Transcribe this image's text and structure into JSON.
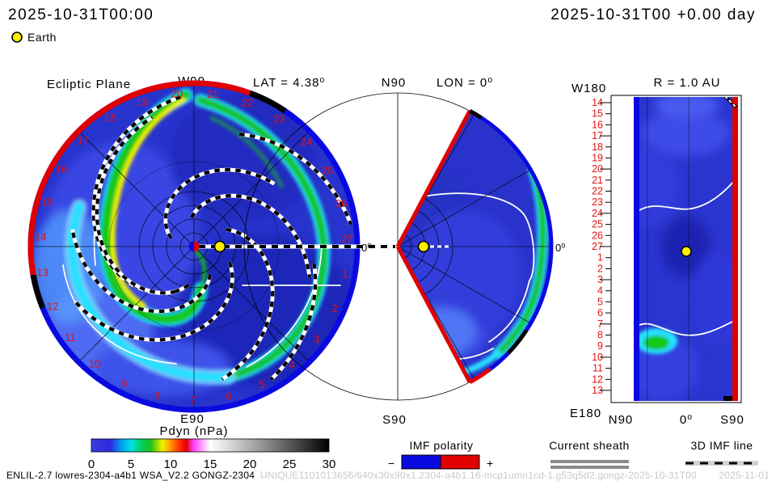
{
  "header": {
    "datetime_left": "2025-10-31T00:00",
    "datetime_right": "2025-10-31T00 +0.00 day",
    "earth_label": "Earth"
  },
  "left_panel": {
    "title": "Ecliptic Plane",
    "top_label": "W90",
    "lat_label": "LAT = 4.38⁰",
    "bottom_label": "E90",
    "zero_label": "0⁰",
    "day_ring": {
      "days": [
        "1",
        "2",
        "3",
        "4",
        "5",
        "6",
        "7",
        "8",
        "9",
        "10",
        "11",
        "12",
        "13",
        "14",
        "15",
        "16",
        "17",
        "18",
        "19",
        "20",
        "21",
        "22",
        "23",
        "24",
        "25",
        "26",
        "27"
      ],
      "angle_day27_deg": 3,
      "step_deg": 13.333
    }
  },
  "middle_panel": {
    "top_label": "N90",
    "lon_label": "LON = 0⁰",
    "bottom_label": "S90",
    "zero_label": "0⁰"
  },
  "right_panel": {
    "title": "R = 1.0 AU",
    "corner_top_label": "W180",
    "corner_bottom_label": "E180",
    "x_labels": [
      "N90",
      "0⁰",
      "S90"
    ],
    "y_days": [
      "14",
      "15",
      "16",
      "17",
      "18",
      "19",
      "20",
      "21",
      "22",
      "23",
      "24",
      "25",
      "26",
      "27",
      "1",
      "2",
      "3",
      "4",
      "5",
      "6",
      "7",
      "8",
      "9",
      "10",
      "11",
      "12",
      "13"
    ],
    "long_tick_days": [
      "14",
      "17",
      "20",
      "24",
      "27",
      "3",
      "7",
      "10",
      "13"
    ]
  },
  "colorbar": {
    "title": "Pdyn (nPa)",
    "ticks": [
      0,
      5,
      10,
      15,
      20,
      25,
      30
    ],
    "min": 0,
    "max": 30
  },
  "legend": {
    "imf": {
      "label": "IMF polarity",
      "minus": "−",
      "plus": "+",
      "neg_color": "#0a0ae0",
      "pos_color": "#e00000"
    },
    "sheath": {
      "label": "Current sheath",
      "color": "#8a8a8a"
    },
    "imf_line": {
      "label": "3D IMF line"
    }
  },
  "footer": {
    "model": "ENLIL-2.7 lowres-2304-a4b1 WSA_V2.2 GONGZ-2304",
    "run_id": "UNIQUE1101013656/640x30x90x1.2304-a4b1.16-mcp1umn1cd-1.g53q5d2.gongz-2025-10-31T00",
    "date": "2025-11-01"
  },
  "chart_data": [
    {
      "type": "heatmap",
      "title": "Ecliptic Plane (polar view, LAT = 4.38⁰)",
      "quantity": "Pdyn (nPa)",
      "scale_range": [
        0,
        30
      ],
      "colorbar": "blue(0) → cyan(4) → green(6) → yellow(9) → red(12) → magenta(13.5) → white(15.5) → black(30)",
      "features": [
        "ambient solar wind ~1-3 nPa (blue) filling disc",
        "two Parker-spiral high-density arms (green ~6 nPa with yellow core ~9 nPa) winding from outer rim near day 20-24 inward to Sun",
        "cyan band (~4 nPa) sweeping along lower-left quadrant",
        "Sun at center (blue/red polarity dot), Earth (yellow) at 1 AU on the 0⁰ line",
        "outer rim IMF polarity: red (+) from day ~13 to ~22 (top/left), blue (−) elsewhere",
        "checkered black/white 3D IMF spiral lines; white current-sheath lines",
        "day-of-rotation labels 1-27 around rim"
      ]
    },
    {
      "type": "heatmap",
      "title": "Meridional slice, LON = 0⁰",
      "quantity": "Pdyn (nPa)",
      "features": [
        "wedge covering ±60⁰ latitude, apex at Sun, Earth dot near apex on equator",
        "green/cyan high-density crescent near outer boundary on equatorward east side",
        "white current-sheath line arcing through wedge",
        "red inner radial boundaries; outer arc blue (−) with black/red segments south"
      ]
    },
    {
      "type": "heatmap",
      "title": "R = 1.0 AU latitude-time map",
      "quantity": "Pdyn (nPa)",
      "x_axis": "latitude N90 → 0⁰ → S90",
      "y_axis": "day of rotation 14→27 then 1→13 (W180 top, E180 bottom)",
      "features": [
        "blue ambient map with dark-blue blob near day 27 at 0⁰",
        "white current-sheath curves near days 23-24 (north-tilting) and 6-7 (south)",
        "green-cyan density patch near day 7-8 south of equator",
        "blue (−) polarity stripe at N60 edge, red (+) stripe at S60 edge",
        "Earth marker (yellow) at 0⁰, day 27"
      ]
    }
  ]
}
